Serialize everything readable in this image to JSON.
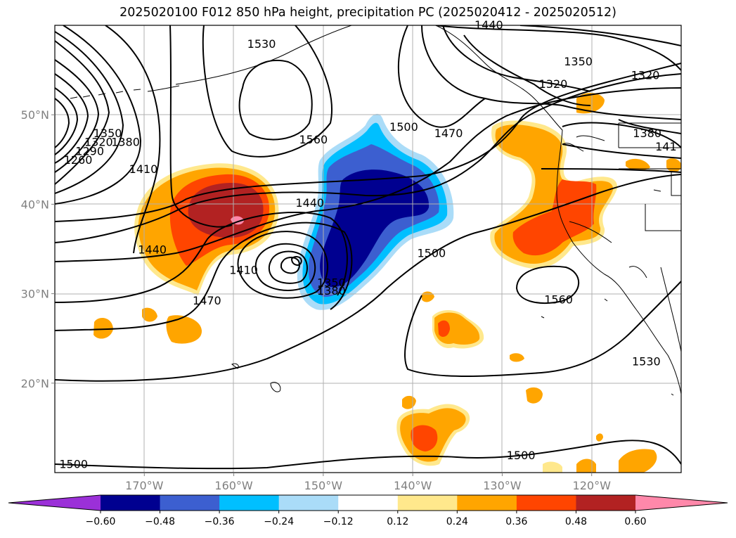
{
  "title": "2025020100 F012 850 hPa height, precipitation PC (2025020412 - 2025020512)",
  "chart_data": {
    "type": "contour-map",
    "title": "2025020100 F012 850 hPa height, precipitation PC (2025020412 - 2025020512)",
    "extent": {
      "lon": [
        -180,
        -110
      ],
      "lat": [
        10,
        60
      ]
    },
    "x_ticks": [
      "170°W",
      "160°W",
      "150°W",
      "140°W",
      "130°W",
      "120°W"
    ],
    "x_tick_values": [
      -170,
      -160,
      -150,
      -140,
      -130,
      -120
    ],
    "y_ticks": [
      "50°N",
      "40°N",
      "30°N",
      "20°N"
    ],
    "y_tick_values": [
      50,
      40,
      30,
      20
    ],
    "grid": true,
    "contour_labels": [
      {
        "text": "1530",
        "lon": -156.9,
        "lat": 57.5
      },
      {
        "text": "1260",
        "lon": -177.4,
        "lat": 44.5
      },
      {
        "text": "1290",
        "lon": -176.1,
        "lat": 45.5
      },
      {
        "text": "1320",
        "lon": -175.1,
        "lat": 46.5
      },
      {
        "text": "1350",
        "lon": -174.1,
        "lat": 47.5
      },
      {
        "text": "1380",
        "lon": -172.1,
        "lat": 46.5
      },
      {
        "text": "1410",
        "lon": -170.1,
        "lat": 43.5
      },
      {
        "text": "1440",
        "lon": -169.1,
        "lat": 34.5
      },
      {
        "text": "1470",
        "lon": -163.0,
        "lat": 28.8
      },
      {
        "text": "1410",
        "lon": -158.9,
        "lat": 32.2
      },
      {
        "text": "1440",
        "lon": -151.5,
        "lat": 39.7
      },
      {
        "text": "1350",
        "lon": -149.1,
        "lat": 30.8
      },
      {
        "text": "1380",
        "lon": -149.1,
        "lat": 29.9
      },
      {
        "text": "1560",
        "lon": -151.1,
        "lat": 46.8
      },
      {
        "text": "1500",
        "lon": -141.0,
        "lat": 48.2
      },
      {
        "text": "1470",
        "lon": -136.0,
        "lat": 47.5
      },
      {
        "text": "1500",
        "lon": -137.9,
        "lat": 34.1
      },
      {
        "text": "1440",
        "lon": -131.5,
        "lat": 59.6
      },
      {
        "text": "1350",
        "lon": -121.5,
        "lat": 55.5
      },
      {
        "text": "1320",
        "lon": -124.3,
        "lat": 53.0
      },
      {
        "text": "1320",
        "lon": -114.0,
        "lat": 54.0
      },
      {
        "text": "1380",
        "lon": -113.8,
        "lat": 47.5
      },
      {
        "text": "141",
        "lon": -111.7,
        "lat": 46.0
      },
      {
        "text": "1560",
        "lon": -123.7,
        "lat": 28.9
      },
      {
        "text": "1530",
        "lon": -113.9,
        "lat": 22.0
      },
      {
        "text": "1500",
        "lon": -127.9,
        "lat": 11.5
      },
      {
        "text": "1500",
        "lon": -177.9,
        "lat": 10.5
      }
    ],
    "colorbar": {
      "levels": [
        -0.6,
        -0.48,
        -0.36,
        -0.24,
        -0.12,
        0.12,
        0.24,
        0.36,
        0.48,
        0.6
      ],
      "tick_labels": [
        "−0.60",
        "−0.48",
        "−0.36",
        "−0.24",
        "−0.12",
        "0.12",
        "0.24",
        "0.36",
        "0.48",
        "0.60"
      ],
      "colors": [
        "#9b30d8",
        "#000090",
        "#3c5fd0",
        "#00bfff",
        "#aadcf8",
        "#ffffff",
        "#ffe88c",
        "#ffa500",
        "#ff4500",
        "#b22222",
        "#ff88aa"
      ],
      "extend": "both"
    }
  }
}
